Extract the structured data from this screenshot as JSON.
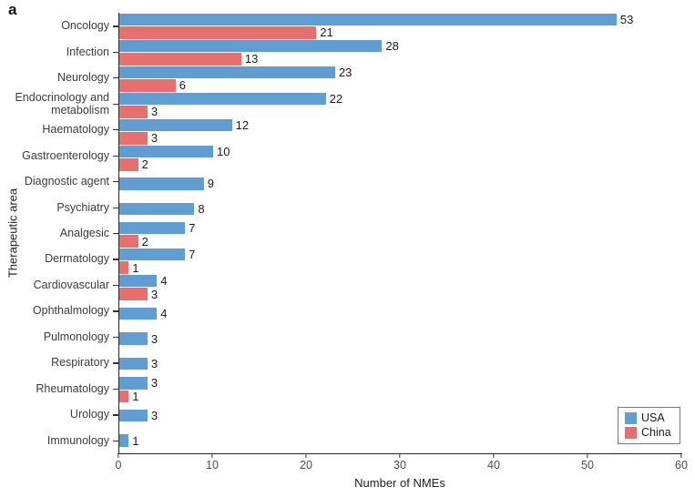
{
  "panel_label": "a",
  "colors": {
    "usa_bar": "#5F9DD2",
    "china_bar": "#E7706E",
    "axis": "#262626",
    "tick_label": "#4d4d4d",
    "category_label": "#3c3c3c",
    "value_label": "#1c1c1c",
    "legend_border": "#7a7a7a",
    "background": "#ffffff"
  },
  "chart_data": {
    "type": "bar",
    "orientation": "horizontal",
    "title": "",
    "xlabel": "Number of NMEs",
    "ylabel": "Therapeutic area",
    "xlim": [
      0,
      60
    ],
    "xticks": [
      0,
      10,
      20,
      30,
      40,
      50,
      60
    ],
    "grid": false,
    "legend_position": "lower right",
    "categories": [
      "Oncology",
      "Infection",
      "Neurology",
      "Endocrinology and metabolism",
      "Haematology",
      "Gastroenterology",
      "Diagnostic agent",
      "Psychiatry",
      "Analgesic",
      "Dermatology",
      "Cardiovascular",
      "Ophthalmology",
      "Pulmonology",
      "Respiratory",
      "Rheumatology",
      "Urology",
      "Immunology"
    ],
    "series": [
      {
        "name": "USA",
        "color": "#5F9DD2",
        "values": [
          53,
          28,
          23,
          22,
          12,
          10,
          9,
          8,
          7,
          7,
          4,
          4,
          3,
          3,
          3,
          3,
          1
        ]
      },
      {
        "name": "China",
        "color": "#E7706E",
        "values": [
          21,
          13,
          6,
          3,
          3,
          2,
          null,
          null,
          2,
          1,
          3,
          null,
          null,
          null,
          1,
          null,
          null
        ]
      }
    ]
  }
}
